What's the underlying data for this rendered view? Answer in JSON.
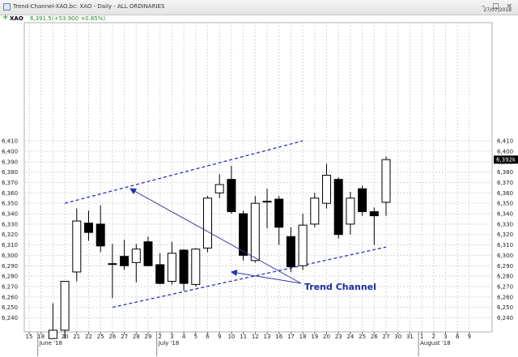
{
  "window": {
    "title": "Trend-Channel-XAO.bc: XAO - Daily - ALL ORDINARIES",
    "date": "27/07/2018",
    "controls": "– □ ×"
  },
  "infobar": {
    "instrument": "XAO",
    "price": "6,391.5",
    "change": "(+53.900 +0.85%)"
  },
  "chart_data": {
    "type": "candlestick",
    "ylim": [
      6230,
      6415
    ],
    "y_ticks": [
      6240,
      6250,
      6260,
      6270,
      6280,
      6290,
      6300,
      6310,
      6320,
      6330,
      6340,
      6350,
      6360,
      6370,
      6380,
      6390,
      6400,
      6410
    ],
    "x_tick_labels": [
      "15",
      "18",
      "19",
      "20",
      "21",
      "22",
      "25",
      "26",
      "27",
      "28",
      "29",
      "2",
      "3",
      "4",
      "5",
      "6",
      "9",
      "10",
      "11",
      "12",
      "13",
      "16",
      "17",
      "18",
      "19",
      "20",
      "23",
      "24",
      "25",
      "26",
      "27",
      "30",
      "31",
      "1",
      "2",
      "3",
      "6",
      "9"
    ],
    "month_labels": [
      {
        "label": "June '18",
        "tick": 1
      },
      {
        "label": "July '18",
        "tick": 11
      },
      {
        "label": "August '18",
        "tick": 33
      }
    ],
    "last_price_label": "6,392k",
    "last_price": 6392,
    "annotation": "Trend Channel",
    "grid": true,
    "candles": [
      {
        "date": "19",
        "open": 6220,
        "high": 6254,
        "low": 6220,
        "close": 6228
      },
      {
        "date": "20",
        "open": 6228,
        "high": 6275,
        "low": 6220,
        "close": 6275
      },
      {
        "date": "21",
        "open": 6284,
        "high": 6345,
        "low": 6275,
        "close": 6333
      },
      {
        "date": "22",
        "open": 6331,
        "high": 6343,
        "low": 6314,
        "close": 6322
      },
      {
        "date": "25",
        "open": 6330,
        "high": 6348,
        "low": 6303,
        "close": 6309
      },
      {
        "date": "26",
        "open": 6292,
        "high": 6311,
        "low": 6259,
        "close": 6292
      },
      {
        "date": "27",
        "open": 6299,
        "high": 6315,
        "low": 6286,
        "close": 6290
      },
      {
        "date": "28",
        "open": 6293,
        "high": 6311,
        "low": 6274,
        "close": 6306
      },
      {
        "date": "29",
        "open": 6313,
        "high": 6318,
        "low": 6290,
        "close": 6290
      },
      {
        "date": "2",
        "open": 6291,
        "high": 6302,
        "low": 6272,
        "close": 6273
      },
      {
        "date": "3",
        "open": 6275,
        "high": 6313,
        "low": 6272,
        "close": 6302
      },
      {
        "date": "4",
        "open": 6305,
        "high": 6306,
        "low": 6266,
        "close": 6273
      },
      {
        "date": "5",
        "open": 6272,
        "high": 6307,
        "low": 6270,
        "close": 6306
      },
      {
        "date": "6",
        "open": 6307,
        "high": 6357,
        "low": 6303,
        "close": 6355
      },
      {
        "date": "9",
        "open": 6360,
        "high": 6378,
        "low": 6355,
        "close": 6368
      },
      {
        "date": "10",
        "open": 6373,
        "high": 6386,
        "low": 6340,
        "close": 6342
      },
      {
        "date": "11",
        "open": 6340,
        "high": 6343,
        "low": 6295,
        "close": 6300
      },
      {
        "date": "12",
        "open": 6295,
        "high": 6357,
        "low": 6293,
        "close": 6350
      },
      {
        "date": "13",
        "open": 6352,
        "high": 6364,
        "low": 6326,
        "close": 6352
      },
      {
        "date": "16",
        "open": 6354,
        "high": 6357,
        "low": 6310,
        "close": 6327
      },
      {
        "date": "17",
        "open": 6318,
        "high": 6327,
        "low": 6284,
        "close": 6289
      },
      {
        "date": "18",
        "open": 6290,
        "high": 6340,
        "low": 6286,
        "close": 6329
      },
      {
        "date": "19",
        "open": 6330,
        "high": 6360,
        "low": 6327,
        "close": 6355
      },
      {
        "date": "20",
        "open": 6350,
        "high": 6388,
        "low": 6345,
        "close": 6377
      },
      {
        "date": "23",
        "open": 6373,
        "high": 6375,
        "low": 6316,
        "close": 6320
      },
      {
        "date": "24",
        "open": 6330,
        "high": 6361,
        "low": 6320,
        "close": 6355
      },
      {
        "date": "25",
        "open": 6364,
        "high": 6367,
        "low": 6338,
        "close": 6342
      },
      {
        "date": "26",
        "open": 6342,
        "high": 6346,
        "low": 6310,
        "close": 6338
      },
      {
        "date": "27",
        "open": 6351,
        "high": 6395,
        "low": 6338,
        "close": 6392
      }
    ],
    "channel": {
      "upper": [
        {
          "tick": 3,
          "y": 6350
        },
        {
          "tick": 23,
          "y": 6410
        }
      ],
      "lower": [
        {
          "tick": 7,
          "y": 6250
        },
        {
          "tick": 30,
          "y": 6308
        }
      ]
    },
    "arrow_targets": [
      {
        "tick": 8.5,
        "y": 6364
      },
      {
        "tick": 17,
        "y": 6284
      }
    ]
  },
  "colors": {
    "up_candle": "#ffffff",
    "down_candle": "#000000",
    "channel_line": "#2d2fb8",
    "arrow": "#3a3aa0",
    "last_price_bg": "#000000"
  }
}
